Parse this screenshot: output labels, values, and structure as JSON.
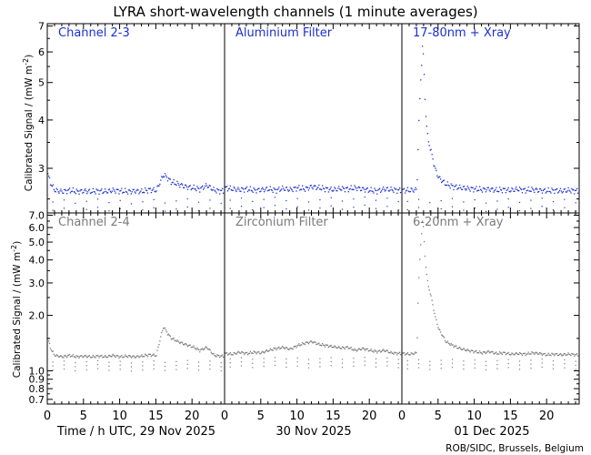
{
  "title": "LYRA short-wavelength channels (1 minute averages)",
  "credit": "ROB/SIDC, Brussels, Belgium",
  "ylabel_text": "Calibrated Signal / (mW m",
  "ylabel_sup": "-2",
  "ylabel_close": ")",
  "xlabels": [
    "Time / h UTC, 29 Nov 2025",
    "30 Nov 2025",
    "01 Dec 2025"
  ],
  "colors": {
    "top": "#1a2fd0",
    "bottom": "#7a7a7a",
    "axes": "#000000"
  },
  "chart_data": [
    {
      "type": "scatter",
      "row": "top",
      "log_y": true,
      "ylim": [
        2.3,
        7.1
      ],
      "yticks": [
        3,
        4,
        5,
        6,
        7
      ],
      "xlim": [
        0,
        24.5
      ],
      "xticks": [
        0,
        5,
        10,
        15,
        20
      ],
      "panels": [
        {
          "name": "Channel 2-3",
          "day": "29 Nov 2025",
          "baseline": 2.63,
          "points": [
            [
              0,
              2.9
            ],
            [
              0.5,
              2.72
            ],
            [
              1,
              2.64
            ],
            [
              2,
              2.62
            ],
            [
              3,
              2.64
            ],
            [
              4,
              2.62
            ],
            [
              5,
              2.63
            ],
            [
              6,
              2.62
            ],
            [
              7,
              2.63
            ],
            [
              8,
              2.62
            ],
            [
              9,
              2.64
            ],
            [
              10,
              2.63
            ],
            [
              11,
              2.62
            ],
            [
              12,
              2.63
            ],
            [
              13,
              2.62
            ],
            [
              14,
              2.65
            ],
            [
              15,
              2.64
            ],
            [
              16,
              2.9
            ],
            [
              16.5,
              2.85
            ],
            [
              17,
              2.78
            ],
            [
              18,
              2.74
            ],
            [
              19,
              2.7
            ],
            [
              20,
              2.68
            ],
            [
              21,
              2.66
            ],
            [
              22,
              2.72
            ],
            [
              23,
              2.64
            ],
            [
              24,
              2.63
            ]
          ]
        },
        {
          "name": "Aluminium Filter",
          "day": "30 Nov 2025",
          "baseline": 2.66,
          "points": [
            [
              0,
              2.68
            ],
            [
              1,
              2.66
            ],
            [
              2,
              2.65
            ],
            [
              3,
              2.66
            ],
            [
              4,
              2.64
            ],
            [
              5,
              2.65
            ],
            [
              6,
              2.66
            ],
            [
              7,
              2.64
            ],
            [
              8,
              2.67
            ],
            [
              9,
              2.65
            ],
            [
              10,
              2.68
            ],
            [
              11,
              2.66
            ],
            [
              12,
              2.7
            ],
            [
              13,
              2.68
            ],
            [
              14,
              2.66
            ],
            [
              15,
              2.65
            ],
            [
              16,
              2.67
            ],
            [
              17,
              2.66
            ],
            [
              18,
              2.68
            ],
            [
              19,
              2.66
            ],
            [
              20,
              2.64
            ],
            [
              21,
              2.63
            ],
            [
              22,
              2.66
            ],
            [
              23,
              2.65
            ],
            [
              24,
              2.64
            ]
          ]
        },
        {
          "name": "17-80nm + Xray",
          "day": "01 Dec 2025",
          "baseline": 2.64,
          "points": [
            [
              0,
              2.64
            ],
            [
              1,
              2.64
            ],
            [
              2,
              2.65
            ],
            [
              2.8,
              6.4
            ],
            [
              3,
              5.2
            ],
            [
              3.2,
              4.2
            ],
            [
              3.5,
              3.6
            ],
            [
              4,
              3.3
            ],
            [
              4.5,
              3.0
            ],
            [
              5,
              2.85
            ],
            [
              6,
              2.74
            ],
            [
              7,
              2.7
            ],
            [
              8,
              2.68
            ],
            [
              9,
              2.67
            ],
            [
              10,
              2.66
            ],
            [
              11,
              2.65
            ],
            [
              12,
              2.66
            ],
            [
              13,
              2.64
            ],
            [
              14,
              2.65
            ],
            [
              15,
              2.64
            ],
            [
              16,
              2.66
            ],
            [
              17,
              2.64
            ],
            [
              18,
              2.65
            ],
            [
              19,
              2.64
            ],
            [
              20,
              2.63
            ],
            [
              21,
              2.64
            ],
            [
              22,
              2.63
            ],
            [
              23,
              2.64
            ],
            [
              24,
              2.63
            ]
          ]
        }
      ]
    },
    {
      "type": "scatter",
      "row": "bottom",
      "log_y": true,
      "ylim": [
        0.66,
        7.2
      ],
      "yticks": [
        0.7,
        0.8,
        0.9,
        1.0,
        2.0,
        3.0,
        4.0,
        5.0,
        6.0,
        7.0
      ],
      "ytick_labels": [
        "0.7",
        "0.8",
        "0.9",
        "1.0",
        "2.0",
        "3.0",
        "4.0",
        "5.0",
        "6.0",
        "7.0"
      ],
      "xlim": [
        0,
        24.5
      ],
      "xticks": [
        0,
        5,
        10,
        15,
        20
      ],
      "panels": [
        {
          "name": "Channel 2-4",
          "day": "29 Nov 2025",
          "baseline": 1.2,
          "points": [
            [
              0,
              1.5
            ],
            [
              0.5,
              1.3
            ],
            [
              1,
              1.22
            ],
            [
              2,
              1.2
            ],
            [
              3,
              1.22
            ],
            [
              4,
              1.2
            ],
            [
              5,
              1.21
            ],
            [
              6,
              1.2
            ],
            [
              7,
              1.21
            ],
            [
              8,
              1.2
            ],
            [
              9,
              1.22
            ],
            [
              10,
              1.2
            ],
            [
              11,
              1.21
            ],
            [
              12,
              1.2
            ],
            [
              13,
              1.21
            ],
            [
              14,
              1.23
            ],
            [
              15,
              1.22
            ],
            [
              16,
              1.75
            ],
            [
              16.5,
              1.62
            ],
            [
              17,
              1.52
            ],
            [
              18,
              1.45
            ],
            [
              19,
              1.4
            ],
            [
              20,
              1.36
            ],
            [
              21,
              1.3
            ],
            [
              22,
              1.35
            ],
            [
              23,
              1.22
            ],
            [
              24,
              1.21
            ]
          ]
        },
        {
          "name": "Zirconium Filter",
          "day": "30 Nov 2025",
          "baseline": 1.25,
          "points": [
            [
              0,
              1.25
            ],
            [
              1,
              1.24
            ],
            [
              2,
              1.27
            ],
            [
              3,
              1.25
            ],
            [
              4,
              1.27
            ],
            [
              5,
              1.26
            ],
            [
              6,
              1.3
            ],
            [
              7,
              1.33
            ],
            [
              8,
              1.35
            ],
            [
              9,
              1.32
            ],
            [
              10,
              1.38
            ],
            [
              11,
              1.42
            ],
            [
              12,
              1.45
            ],
            [
              13,
              1.4
            ],
            [
              14,
              1.38
            ],
            [
              15,
              1.36
            ],
            [
              16,
              1.34
            ],
            [
              17,
              1.35
            ],
            [
              18,
              1.3
            ],
            [
              19,
              1.33
            ],
            [
              20,
              1.3
            ],
            [
              21,
              1.28
            ],
            [
              22,
              1.3
            ],
            [
              23,
              1.26
            ],
            [
              24,
              1.25
            ]
          ]
        },
        {
          "name": "6-20nm + Xray",
          "day": "01 Dec 2025",
          "baseline": 1.22,
          "points": [
            [
              0,
              1.25
            ],
            [
              1,
              1.24
            ],
            [
              2,
              1.26
            ],
            [
              2.8,
              6.8
            ],
            [
              3,
              5.0
            ],
            [
              3.2,
              3.8
            ],
            [
              3.5,
              3.0
            ],
            [
              4,
              2.5
            ],
            [
              4.5,
              2.0
            ],
            [
              5,
              1.7
            ],
            [
              6,
              1.45
            ],
            [
              7,
              1.38
            ],
            [
              8,
              1.33
            ],
            [
              9,
              1.3
            ],
            [
              10,
              1.28
            ],
            [
              11,
              1.26
            ],
            [
              12,
              1.28
            ],
            [
              13,
              1.25
            ],
            [
              14,
              1.26
            ],
            [
              15,
              1.24
            ],
            [
              16,
              1.25
            ],
            [
              17,
              1.24
            ],
            [
              18,
              1.26
            ],
            [
              19,
              1.25
            ],
            [
              20,
              1.23
            ],
            [
              21,
              1.24
            ],
            [
              22,
              1.23
            ],
            [
              23,
              1.24
            ],
            [
              24,
              1.23
            ]
          ]
        }
      ]
    }
  ]
}
